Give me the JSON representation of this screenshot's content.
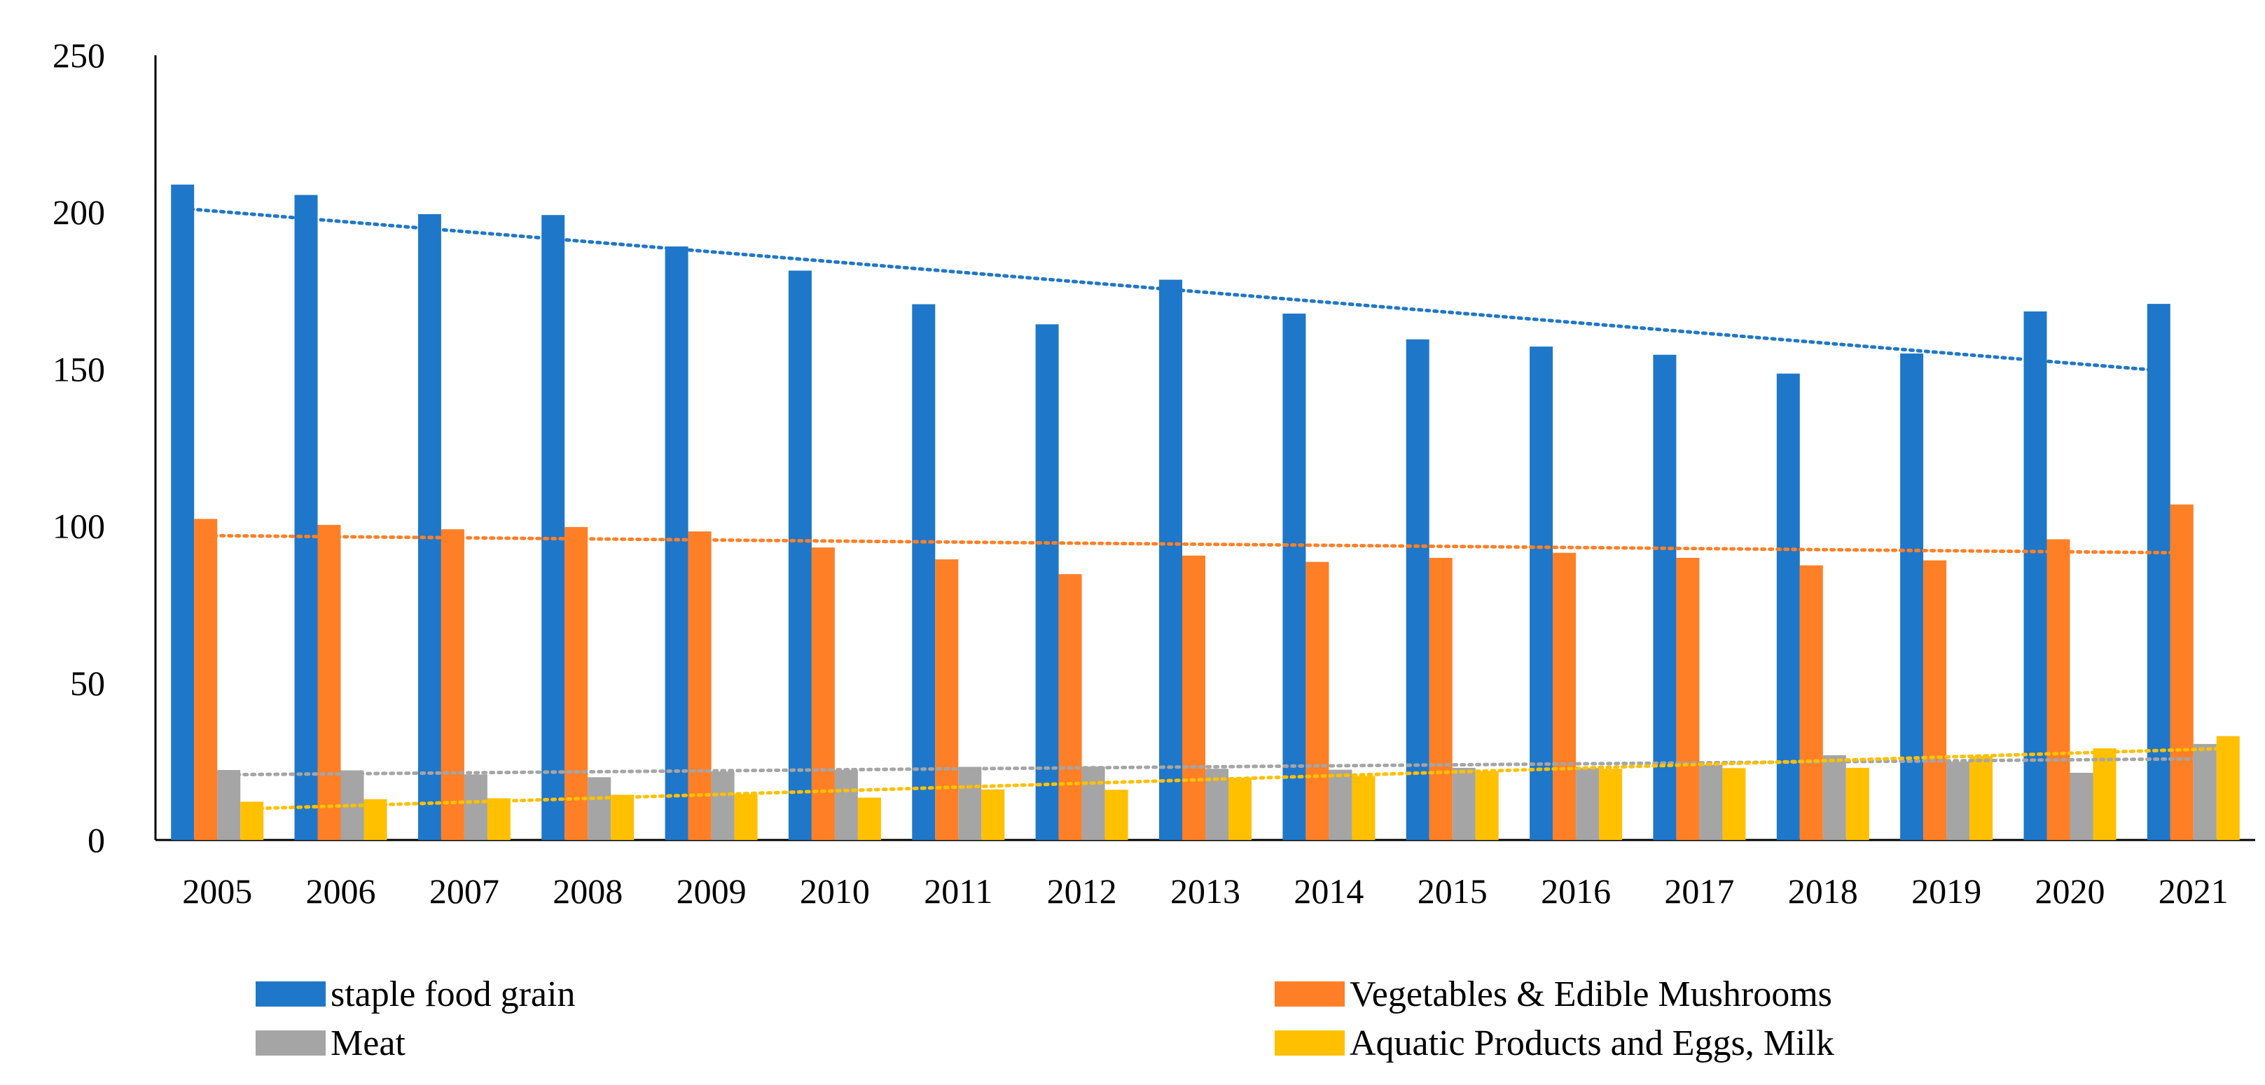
{
  "chart_data": {
    "type": "bar",
    "title": "",
    "xlabel": "",
    "ylabel": "",
    "ylim": [
      0,
      250
    ],
    "yticks": [
      0,
      50,
      100,
      150,
      200,
      250
    ],
    "grid": false,
    "legend_position": "bottom",
    "categories": [
      "2005",
      "2006",
      "2007",
      "2008",
      "2009",
      "2010",
      "2011",
      "2012",
      "2013",
      "2014",
      "2015",
      "2016",
      "2017",
      "2018",
      "2019",
      "2020",
      "2021"
    ],
    "series": [
      {
        "name": "staple food grain",
        "color": "#1F77C9",
        "trendline": true,
        "trend": [
          201.2,
          149.6
        ],
        "values": [
          208.8,
          205.5,
          199.4,
          199.1,
          189.1,
          181.4,
          170.7,
          164.3,
          178.5,
          167.7,
          159.5,
          157.2,
          154.6,
          148.6,
          155.0,
          168.4,
          170.8
        ]
      },
      {
        "name": "Vegetables & Edible Mushrooms",
        "color": "#FF7F27",
        "trendline": true,
        "trend": [
          97.0,
          91.5
        ],
        "values": [
          102.3,
          100.4,
          99.0,
          99.7,
          98.3,
          93.2,
          89.4,
          84.7,
          90.6,
          88.6,
          89.9,
          91.5,
          89.9,
          87.5,
          89.1,
          95.8,
          106.9
        ]
      },
      {
        "name": "Meat",
        "color": "#A5A5A5",
        "trendline": true,
        "trend": [
          20.8,
          25.9
        ],
        "values": [
          22.3,
          22.2,
          20.9,
          20.0,
          21.8,
          22.3,
          23.3,
          23.4,
          22.7,
          22.4,
          23.0,
          22.9,
          24.0,
          27.0,
          25.0,
          21.4,
          30.6
        ]
      },
      {
        "name": "Aquatic Products and Eggs, Milk",
        "color": "#FFC000",
        "trendline": true,
        "trend": [
          10.0,
          29.2
        ],
        "values": [
          12.2,
          13.0,
          13.3,
          14.4,
          14.6,
          13.5,
          16.1,
          16.0,
          19.8,
          20.4,
          21.9,
          22.7,
          22.9,
          23.0,
          26.7,
          29.2,
          33.1
        ]
      }
    ]
  }
}
